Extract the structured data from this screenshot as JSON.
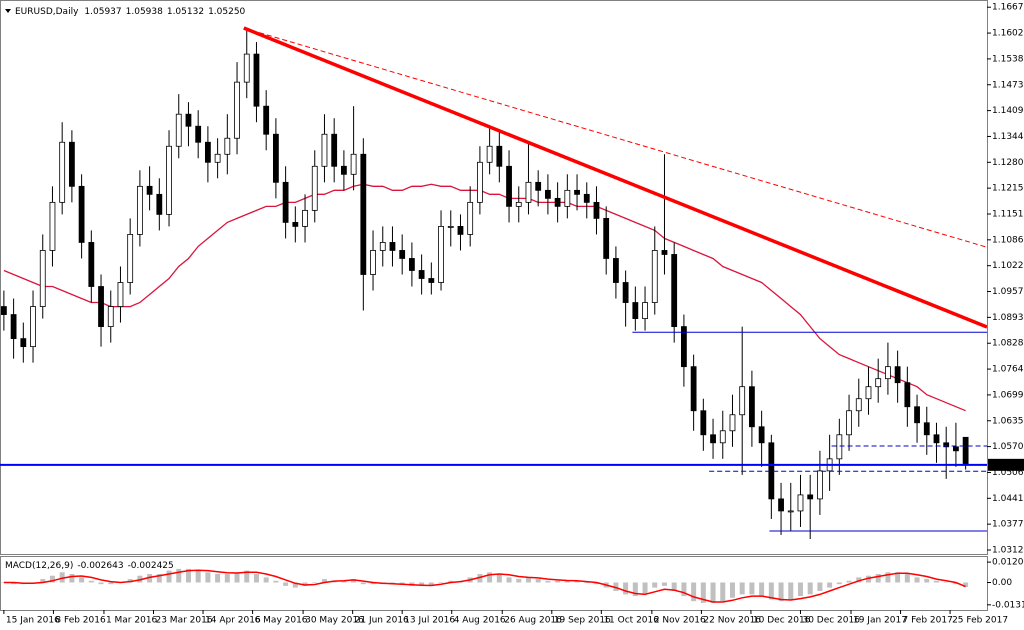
{
  "chart_data": {
    "type": "candlestick",
    "title": "EURUSD,Daily",
    "xlim": [
      -0.4,
      101.2
    ],
    "ylim": [
      1.0305,
      1.168
    ],
    "yticks": [
      {
        "value": 1.1667,
        "label": "1.16670"
      },
      1.16025,
      {
        "value": 1.1538,
        "label": "1.15380"
      },
      1.14735,
      {
        "value": 1.1409,
        "label": "1.14090"
      },
      1.13445,
      {
        "value": 1.128,
        "label": "1.12800"
      },
      1.12155,
      {
        "value": 1.1151,
        "label": "1.11510"
      },
      1.10865,
      {
        "value": 1.1022,
        "label": "1.10220"
      },
      1.09575,
      {
        "value": 1.0893,
        "label": "1.08930"
      },
      1.08285,
      {
        "value": 1.0764,
        "label": "1.07640"
      },
      1.06995,
      {
        "value": 1.0635,
        "label": "1.06350"
      },
      1.05705,
      {
        "value": 1.0506,
        "label": "1.05060"
      },
      1.04415,
      {
        "value": 1.0377,
        "label": "1.03770"
      },
      1.03125
    ],
    "xticks": [
      {
        "value": 0,
        "label": "15 Jan 2016"
      },
      {
        "value": 5.1,
        "label": "8 Feb 2016"
      },
      {
        "value": 10.3,
        "label": "1 Mar 2016"
      },
      {
        "value": 15.4,
        "label": "23 Mar 2016"
      },
      {
        "value": 20.5,
        "label": "14 Apr 2016"
      },
      {
        "value": 25.6,
        "label": "6 May 2016"
      },
      {
        "value": 30.8,
        "label": "30 May 2016"
      },
      {
        "value": 35.9,
        "label": "21 Jun 2016"
      },
      {
        "value": 41,
        "label": "13 Jul 2016"
      },
      {
        "value": 46.1,
        "label": "4 Aug 2016"
      },
      {
        "value": 51.3,
        "label": "26 Aug 2016"
      },
      {
        "value": 56.4,
        "label": "19 Sep 2016"
      },
      {
        "value": 61.5,
        "label": "11 Oct 2016"
      },
      {
        "value": 66.7,
        "label": "2 Nov 2016"
      },
      {
        "value": 71.8,
        "label": "22 Nov 2016"
      },
      {
        "value": 76.9,
        "label": "10 Dec 2016"
      },
      {
        "value": 82,
        "label": "30 Dec 2016"
      },
      {
        "value": 87.2,
        "label": "19 Jan 2017"
      },
      {
        "value": 92.3,
        "label": "7 Feb 2017"
      },
      {
        "value": 97.4,
        "label": "25 Feb 2017"
      }
    ],
    "up_color": "#ffffff",
    "down_color": "#000000",
    "outline_color": "#000000",
    "candles": {
      "open": [
        1.092,
        1.09,
        1.084,
        1.082,
        1.092,
        1.106,
        1.118,
        1.133,
        1.122,
        1.108,
        1.097,
        1.087,
        1.092,
        1.098,
        1.11,
        1.122,
        1.12,
        1.115,
        1.132,
        1.14,
        1.137,
        1.133,
        1.128,
        1.13,
        1.134,
        1.148,
        1.155,
        1.142,
        1.135,
        1.123,
        1.113,
        1.112,
        1.116,
        1.127,
        1.135,
        1.127,
        1.125,
        1.13,
        1.1,
        1.106,
        1.108,
        1.106,
        1.104,
        1.101,
        1.099,
        1.098,
        1.112,
        1.112,
        1.11,
        1.118,
        1.128,
        1.132,
        1.127,
        1.117,
        1.118,
        1.123,
        1.121,
        1.119,
        1.117,
        1.121,
        1.12,
        1.118,
        1.114,
        1.104,
        1.098,
        1.093,
        1.089,
        1.093,
        1.106,
        1.105,
        1.087,
        1.077,
        1.066,
        1.06,
        1.058,
        1.061,
        1.065,
        1.072,
        1.062,
        1.058,
        1.044,
        1.041,
        1.041,
        1.045,
        1.044,
        1.051,
        1.054,
        1.06,
        1.066,
        1.069,
        1.072,
        1.074,
        1.077,
        1.073,
        1.067,
        1.063,
        1.06,
        1.058,
        1.057,
        1.05937
      ],
      "high": [
        1.096,
        1.094,
        1.088,
        1.096,
        1.11,
        1.122,
        1.138,
        1.136,
        1.125,
        1.111,
        1.1,
        1.096,
        1.102,
        1.114,
        1.126,
        1.127,
        1.124,
        1.136,
        1.145,
        1.143,
        1.141,
        1.137,
        1.134,
        1.14,
        1.153,
        1.1615,
        1.158,
        1.146,
        1.139,
        1.127,
        1.117,
        1.12,
        1.131,
        1.14,
        1.139,
        1.131,
        1.142,
        1.134,
        1.111,
        1.112,
        1.112,
        1.11,
        1.108,
        1.105,
        1.103,
        1.116,
        1.116,
        1.115,
        1.122,
        1.132,
        1.137,
        1.136,
        1.131,
        1.122,
        1.133,
        1.126,
        1.125,
        1.123,
        1.125,
        1.125,
        1.123,
        1.122,
        1.117,
        1.107,
        1.101,
        1.097,
        1.097,
        1.112,
        1.13,
        1.108,
        1.09,
        1.08,
        1.069,
        1.064,
        1.066,
        1.07,
        1.087,
        1.076,
        1.066,
        1.06,
        1.048,
        1.048,
        1.05,
        1.05,
        1.056,
        1.06,
        1.064,
        1.07,
        1.074,
        1.077,
        1.079,
        1.083,
        1.081,
        1.077,
        1.07,
        1.067,
        1.063,
        1.062,
        1.063,
        1.05938
      ],
      "low": [
        1.086,
        1.079,
        1.078,
        1.078,
        1.089,
        1.102,
        1.115,
        1.118,
        1.104,
        1.093,
        1.082,
        1.083,
        1.088,
        1.095,
        1.107,
        1.116,
        1.111,
        1.112,
        1.129,
        1.132,
        1.129,
        1.123,
        1.124,
        1.125,
        1.13,
        1.144,
        1.138,
        1.131,
        1.119,
        1.109,
        1.108,
        1.108,
        1.113,
        1.123,
        1.123,
        1.121,
        1.121,
        1.091,
        1.096,
        1.102,
        1.102,
        1.1,
        1.097,
        1.095,
        1.095,
        1.096,
        1.107,
        1.106,
        1.107,
        1.115,
        1.125,
        1.123,
        1.113,
        1.113,
        1.115,
        1.117,
        1.115,
        1.113,
        1.114,
        1.116,
        1.114,
        1.11,
        1.1,
        1.094,
        1.087,
        1.086,
        1.086,
        1.09,
        1.1,
        1.083,
        1.072,
        1.061,
        1.056,
        1.054,
        1.054,
        1.057,
        1.05,
        1.057,
        1.052,
        1.039,
        1.035,
        1.036,
        1.037,
        1.034,
        1.04,
        1.046,
        1.05,
        1.056,
        1.062,
        1.065,
        1.068,
        1.07,
        1.068,
        1.062,
        1.058,
        1.055,
        1.053,
        1.049,
        1.052,
        1.05132
      ],
      "close": [
        1.09,
        1.084,
        1.082,
        1.092,
        1.106,
        1.118,
        1.133,
        1.122,
        1.108,
        1.097,
        1.087,
        1.092,
        1.098,
        1.11,
        1.122,
        1.12,
        1.115,
        1.132,
        1.14,
        1.137,
        1.133,
        1.128,
        1.13,
        1.134,
        1.148,
        1.155,
        1.142,
        1.135,
        1.123,
        1.113,
        1.112,
        1.116,
        1.127,
        1.135,
        1.127,
        1.125,
        1.13,
        1.1,
        1.106,
        1.108,
        1.106,
        1.104,
        1.101,
        1.099,
        1.098,
        1.112,
        1.112,
        1.11,
        1.118,
        1.128,
        1.132,
        1.127,
        1.117,
        1.118,
        1.123,
        1.121,
        1.119,
        1.117,
        1.121,
        1.12,
        1.118,
        1.114,
        1.104,
        1.098,
        1.093,
        1.089,
        1.093,
        1.106,
        1.105,
        1.087,
        1.077,
        1.066,
        1.06,
        1.058,
        1.061,
        1.065,
        1.072,
        1.062,
        1.058,
        1.044,
        1.041,
        1.041,
        1.045,
        1.044,
        1.051,
        1.054,
        1.06,
        1.066,
        1.069,
        1.072,
        1.074,
        1.077,
        1.073,
        1.067,
        1.063,
        1.06,
        1.058,
        1.057,
        1.056,
        1.0525
      ]
    },
    "ma": {
      "color": "#dc143c",
      "values": [
        1.101,
        1.1,
        1.099,
        1.098,
        1.097,
        1.097,
        1.096,
        1.095,
        1.094,
        1.093,
        1.093,
        1.092,
        1.092,
        1.092,
        1.093,
        1.095,
        1.097,
        1.099,
        1.102,
        1.104,
        1.107,
        1.109,
        1.111,
        1.113,
        1.114,
        1.115,
        1.116,
        1.117,
        1.117,
        1.118,
        1.118,
        1.119,
        1.12,
        1.12,
        1.121,
        1.121,
        1.122,
        1.1225,
        1.122,
        1.122,
        1.121,
        1.121,
        1.122,
        1.122,
        1.1225,
        1.122,
        1.122,
        1.121,
        1.121,
        1.121,
        1.12,
        1.12,
        1.119,
        1.119,
        1.119,
        1.118,
        1.118,
        1.118,
        1.118,
        1.117,
        1.117,
        1.117,
        1.116,
        1.115,
        1.114,
        1.113,
        1.112,
        1.111,
        1.109,
        1.108,
        1.107,
        1.106,
        1.105,
        1.104,
        1.102,
        1.101,
        1.1,
        1.099,
        1.098,
        1.096,
        1.094,
        1.092,
        1.09,
        1.087,
        1.084,
        1.082,
        1.08,
        1.079,
        1.078,
        1.077,
        1.076,
        1.075,
        1.074,
        1.073,
        1.072,
        1.07,
        1.069,
        1.068,
        1.067,
        1.066
      ]
    },
    "trendlines": [
      {
        "color": "#ff0000",
        "style": "solid",
        "from": [
          24.7,
          1.1615
        ],
        "to": [
          101.2,
          1.0869
        ]
      },
      {
        "color": "#ff0000",
        "style": "dashed",
        "from": [
          24.7,
          1.1615
        ],
        "to": [
          101.2,
          1.1068
        ]
      }
    ],
    "hlines": [
      {
        "price": 1.0856,
        "from": 64.7,
        "color": "#0000cd",
        "style": "solid"
      },
      {
        "price": 1.036,
        "from": 78.8,
        "color": "#0000cd",
        "style": "solid"
      },
      {
        "price": 1.0572,
        "from": 85.2,
        "color": "#0000cd",
        "style": "dashed"
      },
      {
        "price": 1.0509,
        "from": 72.6,
        "color": "#0000cd",
        "style": "dashed"
      }
    ],
    "last_price": {
      "value": 1.0525,
      "label": "1.05250",
      "color": "#0000ff"
    },
    "macd": {
      "name": "MACD(12,26,9)",
      "ylim": [
        -0.0162,
        0.0156
      ],
      "yticks": [
        0.012013,
        {
          "value": 0,
          "label": "0.00"
        },
        -0.013153
      ],
      "histogram_color": "#c0c0c0",
      "signal_color": "#ff0000",
      "histogram": [
        0,
        -0.001,
        -0.001,
        0,
        0.002,
        0.004,
        0.006,
        0.005,
        0.003,
        0.001,
        -0.001,
        -0.001,
        0,
        0.002,
        0.004,
        0.005,
        0.005,
        0.007,
        0.008,
        0.008,
        0.007,
        0.006,
        0.005,
        0.005,
        0.006,
        0.007,
        0.005,
        0.003,
        0.001,
        -0.002,
        -0.003,
        -0.002,
        0,
        0.002,
        0.001,
        0.001,
        0.002,
        -0.001,
        -0.001,
        -0.001,
        -0.001,
        -0.001,
        -0.002,
        -0.002,
        -0.002,
        0,
        0.001,
        0.001,
        0.003,
        0.005,
        0.006,
        0.005,
        0.003,
        0.002,
        0.003,
        0.002,
        0.001,
        0.001,
        0.001,
        0.001,
        0,
        -0.001,
        -0.003,
        -0.005,
        -0.007,
        -0.008,
        -0.007,
        -0.003,
        -0.002,
        -0.005,
        -0.008,
        -0.011,
        -0.012,
        -0.012,
        -0.011,
        -0.009,
        -0.007,
        -0.007,
        -0.008,
        -0.01,
        -0.011,
        -0.01,
        -0.008,
        -0.007,
        -0.005,
        -0.003,
        -0.001,
        0.001,
        0.003,
        0.004,
        0.005,
        0.006,
        0.006,
        0.005,
        0.003,
        0.002,
        0.001,
        0,
        -0.001,
        -0.002643
      ],
      "signal": [
        0,
        0,
        -0.0005,
        -0.0005,
        0,
        0.001,
        0.0025,
        0.0035,
        0.0038,
        0.003,
        0.0015,
        0.0005,
        0,
        0.0005,
        0.0015,
        0.003,
        0.004,
        0.005,
        0.006,
        0.007,
        0.0072,
        0.007,
        0.0063,
        0.0057,
        0.0056,
        0.006,
        0.006,
        0.005,
        0.0035,
        0.0015,
        -0.0005,
        -0.0015,
        -0.0012,
        0,
        0.0008,
        0.001,
        0.0015,
        0.0008,
        0,
        -0.0005,
        -0.0008,
        -0.001,
        -0.0013,
        -0.0016,
        -0.0018,
        -0.001,
        0,
        0.0005,
        0.0015,
        0.003,
        0.0045,
        0.005,
        0.0045,
        0.0035,
        0.003,
        0.0027,
        0.002,
        0.0015,
        0.0012,
        0.001,
        0.0005,
        0,
        -0.0015,
        -0.003,
        -0.005,
        -0.0065,
        -0.007,
        -0.0055,
        -0.004,
        -0.0045,
        -0.006,
        -0.0085,
        -0.01,
        -0.0115,
        -0.0115,
        -0.0105,
        -0.009,
        -0.008,
        -0.008,
        -0.009,
        -0.01,
        -0.0103,
        -0.0095,
        -0.0085,
        -0.007,
        -0.005,
        -0.003,
        -0.001,
        0.001,
        0.0025,
        0.0035,
        0.0045,
        0.0055,
        0.0055,
        0.0045,
        0.0035,
        0.002,
        0.001,
        0,
        -0.002425
      ]
    }
  }
}
